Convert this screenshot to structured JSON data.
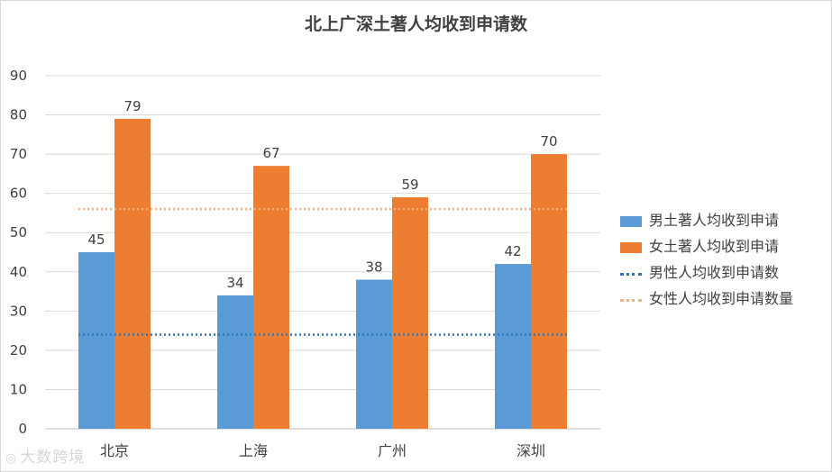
{
  "chart_data": {
    "type": "bar",
    "title": "北上广深土著人均收到申请数",
    "categories": [
      "北京",
      "上海",
      "广州",
      "深圳"
    ],
    "series": [
      {
        "name": "男土著人均收到申请",
        "type": "bar",
        "values": [
          45,
          34,
          38,
          42
        ],
        "color": "#5b9bd5"
      },
      {
        "name": "女土著人均收到申请",
        "type": "bar",
        "values": [
          79,
          67,
          59,
          70
        ],
        "color": "#ed7d31"
      },
      {
        "name": "男性人均收到申请数",
        "type": "line",
        "values": [
          24,
          24,
          24,
          24
        ],
        "color": "#2e75b6"
      },
      {
        "name": "女性人均收到申请数量",
        "type": "line",
        "values": [
          56,
          56,
          56,
          56
        ],
        "color": "#f4b183"
      }
    ],
    "ylim": [
      0,
      90
    ],
    "yticks": [
      0,
      10,
      20,
      30,
      40,
      50,
      60,
      70,
      80,
      90
    ],
    "grid": true,
    "legend": "right",
    "xlabel": "",
    "ylabel": ""
  },
  "watermark": "大数跨境"
}
